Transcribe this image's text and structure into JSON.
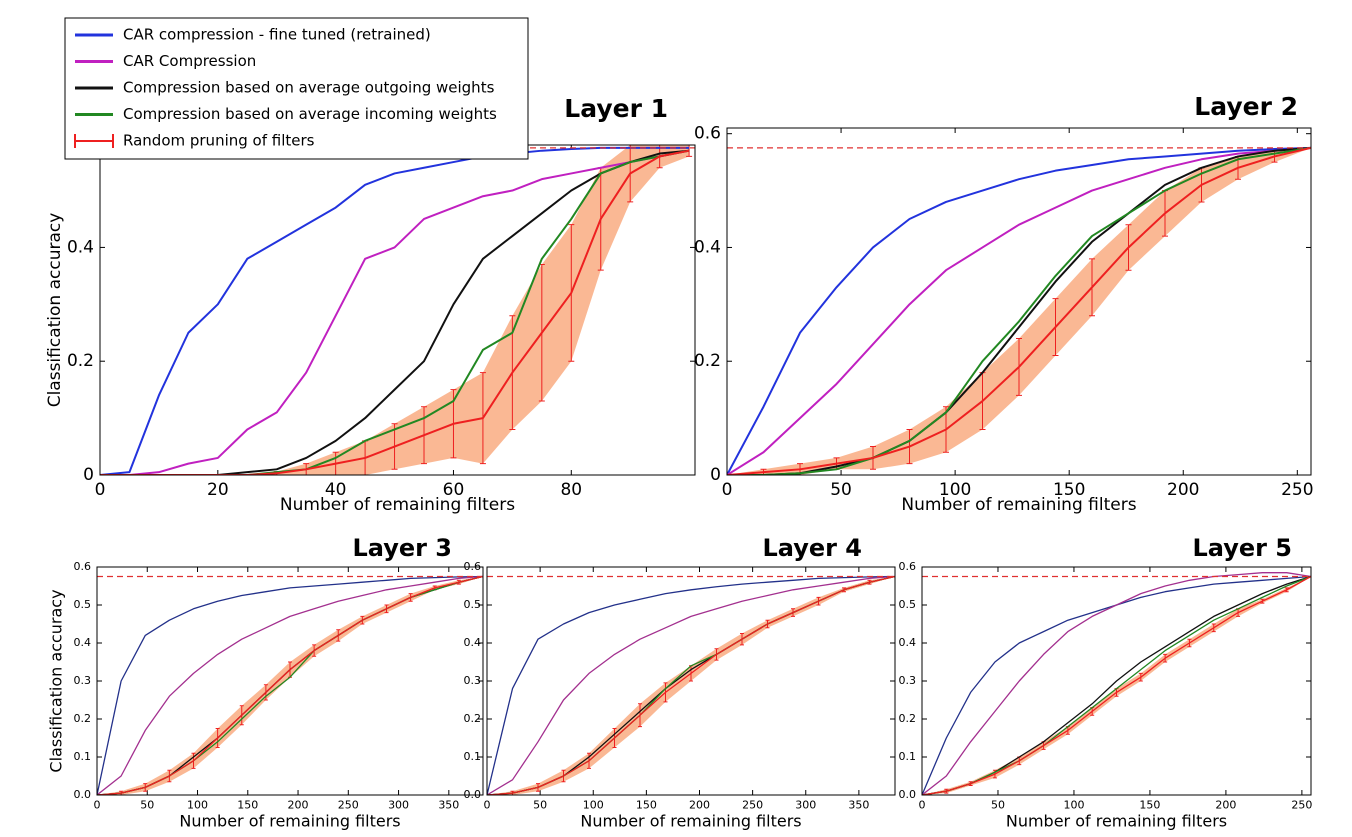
{
  "chart_data": [
    {
      "type": "line",
      "title": "Layer 1",
      "xlabel": "Number of remaining filters",
      "ylabel": "Classification accuracy",
      "xlim": [
        0,
        101
      ],
      "ylim": [
        0,
        0.58
      ],
      "xticks": [
        0,
        20,
        40,
        60,
        80
      ],
      "yticks": [
        0,
        0.2,
        0.4
      ],
      "reference_line": 0.575,
      "reference_color": "#e03030",
      "legend": "upper left",
      "x": [
        0,
        5,
        10,
        15,
        20,
        25,
        30,
        35,
        40,
        45,
        50,
        55,
        60,
        65,
        70,
        75,
        80,
        85,
        90,
        95,
        100
      ],
      "series": [
        {
          "name": "CAR compression - fine tuned (retrained)",
          "color": "#2233dd",
          "values": [
            0,
            0.005,
            0.14,
            0.25,
            0.3,
            0.38,
            0.41,
            0.44,
            0.47,
            0.51,
            0.53,
            0.54,
            0.55,
            0.56,
            0.565,
            0.57,
            0.573,
            0.575,
            0.575,
            0.575,
            0.575
          ]
        },
        {
          "name": "CAR Compression",
          "color": "#c020c0",
          "values": [
            0,
            0,
            0.005,
            0.02,
            0.03,
            0.08,
            0.11,
            0.18,
            0.28,
            0.38,
            0.4,
            0.45,
            0.47,
            0.49,
            0.5,
            0.52,
            0.53,
            0.54,
            0.55,
            0.56,
            0.57
          ]
        },
        {
          "name": "Compression based on average outgoing weights",
          "color": "#111111",
          "values": [
            0,
            0,
            0,
            0,
            0,
            0.005,
            0.01,
            0.03,
            0.06,
            0.1,
            0.15,
            0.2,
            0.3,
            0.38,
            0.42,
            0.46,
            0.5,
            0.53,
            0.55,
            0.565,
            0.57
          ]
        },
        {
          "name": "Compression based on average incoming weights",
          "color": "#228822",
          "values": [
            0,
            0,
            0,
            0,
            0,
            0,
            0.005,
            0.01,
            0.03,
            0.06,
            0.08,
            0.1,
            0.13,
            0.22,
            0.25,
            0.38,
            0.45,
            0.53,
            0.55,
            0.56,
            0.57
          ]
        },
        {
          "name": "Random pruning of filters",
          "color": "#ee2020",
          "band_color": "#f8a070",
          "values": [
            0,
            0,
            0,
            0,
            0,
            0,
            0.003,
            0.01,
            0.02,
            0.03,
            0.05,
            0.07,
            0.09,
            0.1,
            0.18,
            0.25,
            0.32,
            0.45,
            0.53,
            0.56,
            0.57
          ],
          "errors": [
            0,
            0,
            0,
            0,
            0,
            0,
            0.003,
            0.01,
            0.02,
            0.03,
            0.04,
            0.05,
            0.06,
            0.08,
            0.1,
            0.12,
            0.12,
            0.09,
            0.05,
            0.02,
            0.01
          ]
        }
      ]
    },
    {
      "type": "line",
      "title": "Layer 2",
      "xlabel": "Number of remaining filters",
      "xlim": [
        0,
        256
      ],
      "ylim": [
        0,
        0.61
      ],
      "xticks": [
        0,
        50,
        100,
        150,
        200,
        250
      ],
      "yticks": [
        0,
        0.2,
        0.4,
        0.6
      ],
      "reference_line": 0.575,
      "reference_color": "#e03030",
      "x": [
        0,
        16,
        32,
        48,
        64,
        80,
        96,
        112,
        128,
        144,
        160,
        176,
        192,
        208,
        224,
        240,
        256
      ],
      "series": [
        {
          "color": "#2233dd",
          "values": [
            0,
            0.12,
            0.25,
            0.33,
            0.4,
            0.45,
            0.48,
            0.5,
            0.52,
            0.535,
            0.545,
            0.555,
            0.56,
            0.565,
            0.57,
            0.573,
            0.575
          ]
        },
        {
          "color": "#c020c0",
          "values": [
            0,
            0.04,
            0.1,
            0.16,
            0.23,
            0.3,
            0.36,
            0.4,
            0.44,
            0.47,
            0.5,
            0.52,
            0.54,
            0.555,
            0.565,
            0.57,
            0.575
          ]
        },
        {
          "color": "#111111",
          "values": [
            0,
            0,
            0.003,
            0.015,
            0.03,
            0.06,
            0.11,
            0.18,
            0.26,
            0.34,
            0.41,
            0.46,
            0.51,
            0.54,
            0.56,
            0.57,
            0.575
          ]
        },
        {
          "color": "#228822",
          "values": [
            0,
            0,
            0.003,
            0.01,
            0.03,
            0.06,
            0.11,
            0.2,
            0.27,
            0.35,
            0.42,
            0.46,
            0.5,
            0.53,
            0.555,
            0.565,
            0.575
          ]
        },
        {
          "color": "#ee2020",
          "band_color": "#f8a070",
          "values": [
            0,
            0.005,
            0.01,
            0.02,
            0.03,
            0.05,
            0.08,
            0.13,
            0.19,
            0.26,
            0.33,
            0.4,
            0.46,
            0.51,
            0.54,
            0.56,
            0.575
          ],
          "errors": [
            0,
            0.005,
            0.01,
            0.01,
            0.02,
            0.03,
            0.04,
            0.05,
            0.05,
            0.05,
            0.05,
            0.04,
            0.04,
            0.03,
            0.02,
            0.01,
            0
          ]
        }
      ]
    },
    {
      "type": "line",
      "title": "Layer 3",
      "xlabel": "Number of remaining filters",
      "ylabel": "Classification accuracy",
      "xlim": [
        0,
        384
      ],
      "ylim": [
        0,
        0.6
      ],
      "xticks": [
        0,
        50,
        100,
        150,
        200,
        250,
        300,
        350
      ],
      "yticks": [
        {
          "value": 0,
          "label": "0.0"
        },
        0.1,
        0.2,
        0.3,
        0.4,
        0.5,
        0.6
      ],
      "reference_line": 0.575,
      "reference_color": "#e03030",
      "x": [
        0,
        24,
        48,
        72,
        96,
        120,
        144,
        168,
        192,
        216,
        240,
        264,
        288,
        312,
        336,
        360,
        384
      ],
      "series": [
        {
          "color": "#23318a",
          "values": [
            0,
            0.3,
            0.42,
            0.46,
            0.49,
            0.51,
            0.525,
            0.535,
            0.545,
            0.55,
            0.555,
            0.56,
            0.565,
            0.57,
            0.572,
            0.574,
            0.575
          ]
        },
        {
          "color": "#a3308f",
          "values": [
            0,
            0.05,
            0.17,
            0.26,
            0.32,
            0.37,
            0.41,
            0.44,
            0.47,
            0.49,
            0.51,
            0.525,
            0.54,
            0.55,
            0.56,
            0.57,
            0.575
          ]
        },
        {
          "color": "#111111",
          "values": [
            0,
            0.005,
            0.02,
            0.05,
            0.1,
            0.15,
            0.21,
            0.27,
            0.33,
            0.38,
            0.42,
            0.46,
            0.49,
            0.52,
            0.54,
            0.56,
            0.575
          ]
        },
        {
          "color": "#228822",
          "values": [
            0,
            0.005,
            0.02,
            0.05,
            0.09,
            0.14,
            0.2,
            0.26,
            0.31,
            0.38,
            0.42,
            0.46,
            0.49,
            0.52,
            0.54,
            0.56,
            0.575
          ]
        },
        {
          "color": "#ee2020",
          "band_color": "#f8a070",
          "values": [
            0,
            0.005,
            0.02,
            0.05,
            0.09,
            0.15,
            0.21,
            0.27,
            0.33,
            0.38,
            0.42,
            0.46,
            0.49,
            0.52,
            0.545,
            0.56,
            0.575
          ],
          "errors": [
            0,
            0.005,
            0.01,
            0.015,
            0.02,
            0.025,
            0.025,
            0.02,
            0.02,
            0.015,
            0.015,
            0.01,
            0.01,
            0.01,
            0.005,
            0.005,
            0
          ]
        }
      ]
    },
    {
      "type": "line",
      "title": "Layer 4",
      "xlabel": "Number of remaining filters",
      "xlim": [
        0,
        384
      ],
      "ylim": [
        0,
        0.6
      ],
      "xticks": [
        0,
        50,
        100,
        150,
        200,
        250,
        300,
        350
      ],
      "yticks": [
        {
          "value": 0,
          "label": "0.0"
        },
        0.1,
        0.2,
        0.3,
        0.4,
        0.5,
        0.6
      ],
      "reference_line": 0.575,
      "reference_color": "#e03030",
      "x": [
        0,
        24,
        48,
        72,
        96,
        120,
        144,
        168,
        192,
        216,
        240,
        264,
        288,
        312,
        336,
        360,
        384
      ],
      "series": [
        {
          "color": "#23318a",
          "values": [
            0,
            0.28,
            0.41,
            0.45,
            0.48,
            0.5,
            0.515,
            0.53,
            0.54,
            0.548,
            0.555,
            0.56,
            0.565,
            0.57,
            0.572,
            0.574,
            0.575
          ]
        },
        {
          "color": "#a3308f",
          "values": [
            0,
            0.04,
            0.14,
            0.25,
            0.32,
            0.37,
            0.41,
            0.44,
            0.47,
            0.49,
            0.51,
            0.525,
            0.54,
            0.55,
            0.56,
            0.57,
            0.575
          ]
        },
        {
          "color": "#111111",
          "values": [
            0,
            0.005,
            0.02,
            0.05,
            0.1,
            0.16,
            0.22,
            0.28,
            0.33,
            0.37,
            0.41,
            0.45,
            0.48,
            0.51,
            0.54,
            0.56,
            0.575
          ]
        },
        {
          "color": "#228822",
          "values": [
            0,
            0.005,
            0.02,
            0.05,
            0.09,
            0.15,
            0.21,
            0.28,
            0.34,
            0.37,
            0.41,
            0.45,
            0.48,
            0.51,
            0.54,
            0.56,
            0.575
          ]
        },
        {
          "color": "#ee2020",
          "band_color": "#f8a070",
          "values": [
            0,
            0.005,
            0.02,
            0.05,
            0.09,
            0.15,
            0.21,
            0.27,
            0.32,
            0.37,
            0.41,
            0.45,
            0.48,
            0.51,
            0.54,
            0.56,
            0.575
          ],
          "errors": [
            0,
            0.005,
            0.01,
            0.015,
            0.02,
            0.025,
            0.03,
            0.025,
            0.02,
            0.015,
            0.015,
            0.01,
            0.01,
            0.01,
            0.005,
            0.005,
            0
          ]
        }
      ]
    },
    {
      "type": "line",
      "title": "Layer 5",
      "xlabel": "Number of remaining filters",
      "xlim": [
        0,
        256
      ],
      "ylim": [
        0,
        0.6
      ],
      "xticks": [
        0,
        50,
        100,
        150,
        200,
        250
      ],
      "yticks": [
        {
          "value": 0,
          "label": "0.0"
        },
        0.1,
        0.2,
        0.3,
        0.4,
        0.5,
        0.6
      ],
      "reference_line": 0.575,
      "reference_color": "#e03030",
      "x": [
        0,
        16,
        32,
        48,
        64,
        80,
        96,
        112,
        128,
        144,
        160,
        176,
        192,
        208,
        224,
        240,
        256
      ],
      "series": [
        {
          "color": "#23318a",
          "values": [
            0,
            0.15,
            0.27,
            0.35,
            0.4,
            0.43,
            0.46,
            0.48,
            0.5,
            0.52,
            0.535,
            0.545,
            0.555,
            0.56,
            0.565,
            0.57,
            0.575
          ]
        },
        {
          "color": "#a3308f",
          "values": [
            0,
            0.05,
            0.14,
            0.22,
            0.3,
            0.37,
            0.43,
            0.47,
            0.5,
            0.53,
            0.55,
            0.565,
            0.575,
            0.58,
            0.585,
            0.585,
            0.575
          ]
        },
        {
          "color": "#111111",
          "values": [
            0,
            0.01,
            0.03,
            0.06,
            0.1,
            0.14,
            0.19,
            0.24,
            0.3,
            0.35,
            0.39,
            0.43,
            0.47,
            0.5,
            0.53,
            0.555,
            0.575
          ]
        },
        {
          "color": "#228822",
          "values": [
            0,
            0.01,
            0.03,
            0.06,
            0.09,
            0.13,
            0.18,
            0.23,
            0.28,
            0.33,
            0.38,
            0.42,
            0.46,
            0.49,
            0.52,
            0.55,
            0.575
          ]
        },
        {
          "color": "#ee2020",
          "band_color": "#f8a070",
          "values": [
            0,
            0.01,
            0.03,
            0.055,
            0.09,
            0.13,
            0.17,
            0.22,
            0.27,
            0.31,
            0.36,
            0.4,
            0.44,
            0.48,
            0.51,
            0.54,
            0.575
          ],
          "errors": [
            0,
            0.005,
            0.005,
            0.01,
            0.01,
            0.01,
            0.01,
            0.01,
            0.01,
            0.01,
            0.01,
            0.01,
            0.01,
            0.01,
            0.005,
            0.005,
            0
          ]
        }
      ]
    }
  ]
}
